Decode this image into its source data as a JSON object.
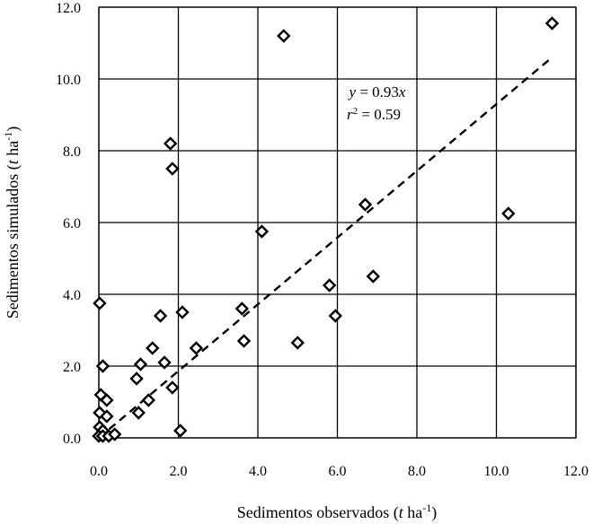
{
  "chart_data": {
    "type": "scatter",
    "title": "",
    "xlabel": "Sedimentos observados (t ha-1)",
    "ylabel": "Sedimentos simulados (t ha-1)",
    "xlim": [
      0,
      12
    ],
    "ylim": [
      0,
      12
    ],
    "x_ticks": [
      "0.0",
      "2.0",
      "4.0",
      "6.0",
      "8.0",
      "10.0",
      "12.0"
    ],
    "y_ticks": [
      "0.0",
      "2.0",
      "4.0",
      "6.0",
      "8.0",
      "10.0",
      "12.0"
    ],
    "grid": true,
    "marker": "diamond",
    "points": [
      {
        "x": 0.02,
        "y": 3.75
      },
      {
        "x": 0.1,
        "y": 2.0
      },
      {
        "x": 0.05,
        "y": 1.2
      },
      {
        "x": 0.2,
        "y": 1.05
      },
      {
        "x": 0.02,
        "y": 0.7
      },
      {
        "x": 0.2,
        "y": 0.6
      },
      {
        "x": 0.02,
        "y": 0.3
      },
      {
        "x": 0.1,
        "y": 0.2
      },
      {
        "x": 0.0,
        "y": 0.05
      },
      {
        "x": 0.1,
        "y": 0.05
      },
      {
        "x": 0.25,
        "y": 0.05
      },
      {
        "x": 0.4,
        "y": 0.1
      },
      {
        "x": 1.0,
        "y": 0.7
      },
      {
        "x": 0.95,
        "y": 1.65
      },
      {
        "x": 1.05,
        "y": 2.05
      },
      {
        "x": 1.25,
        "y": 1.05
      },
      {
        "x": 1.35,
        "y": 2.5
      },
      {
        "x": 1.55,
        "y": 3.4
      },
      {
        "x": 1.65,
        "y": 2.1
      },
      {
        "x": 1.85,
        "y": 1.4
      },
      {
        "x": 2.05,
        "y": 0.2
      },
      {
        "x": 2.1,
        "y": 3.5
      },
      {
        "x": 2.45,
        "y": 2.5
      },
      {
        "x": 1.8,
        "y": 8.2
      },
      {
        "x": 1.85,
        "y": 7.5
      },
      {
        "x": 3.6,
        "y": 3.6
      },
      {
        "x": 3.65,
        "y": 2.7
      },
      {
        "x": 4.1,
        "y": 5.75
      },
      {
        "x": 4.65,
        "y": 11.2
      },
      {
        "x": 5.0,
        "y": 2.65
      },
      {
        "x": 5.8,
        "y": 4.25
      },
      {
        "x": 5.95,
        "y": 3.4
      },
      {
        "x": 6.7,
        "y": 6.5
      },
      {
        "x": 6.9,
        "y": 4.5
      },
      {
        "x": 10.3,
        "y": 6.25
      },
      {
        "x": 11.4,
        "y": 11.55
      }
    ],
    "trendline": {
      "slope": 0.93,
      "x_range": [
        0,
        11.4
      ],
      "style": "dashed"
    },
    "annotation": {
      "equation": "y = 0.93x",
      "r2": "r2 = 0.59"
    }
  }
}
